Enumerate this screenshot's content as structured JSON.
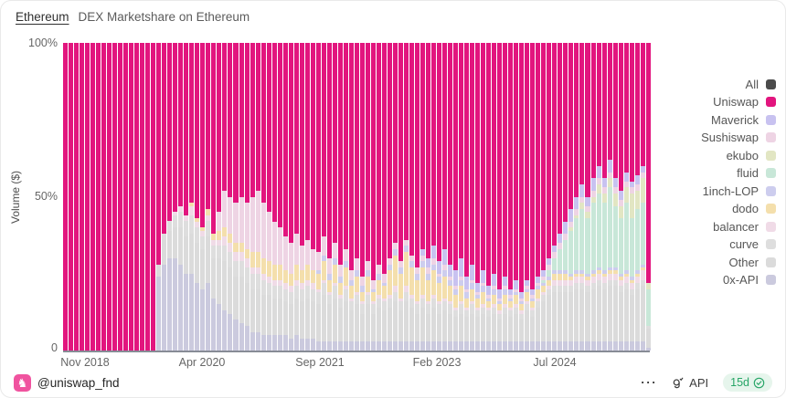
{
  "header": {
    "filter_label": "Ethereum",
    "title": "DEX Marketshare on Ethereum"
  },
  "axes": {
    "y_title": "Volume ($)",
    "y_ticks": [
      "100%",
      "50%",
      "0"
    ],
    "x_ticks": [
      "Nov 2018",
      "Apr 2020",
      "Sep 2021",
      "Feb 2023",
      "Jul 2024"
    ]
  },
  "legend": {
    "items": [
      {
        "label": "All",
        "color": "#4b4b4b"
      },
      {
        "label": "Uniswap",
        "color": "#E2157E"
      },
      {
        "label": "Maverick",
        "color": "#c8c2f0"
      },
      {
        "label": "Sushiswap",
        "color": "#eed4e4"
      },
      {
        "label": "ekubo",
        "color": "#e2e6c3"
      },
      {
        "label": "fluid",
        "color": "#c8e7d8"
      },
      {
        "label": "1inch-LOP",
        "color": "#cdcdee"
      },
      {
        "label": "dodo",
        "color": "#f4dfac"
      },
      {
        "label": "balancer",
        "color": "#f0dbe7"
      },
      {
        "label": "curve",
        "color": "#dedede"
      },
      {
        "label": "Other",
        "color": "#dbdbdb"
      },
      {
        "label": "0x-API",
        "color": "#cbcade"
      }
    ]
  },
  "footer": {
    "author": "@uniswap_fnd",
    "author_icon_glyph": "♞",
    "more_glyph": "⋯",
    "api_label": "API",
    "freshness": "15d"
  },
  "chart_data": {
    "type": "bar",
    "stacked": true,
    "title": "DEX Marketshare on Ethereum",
    "ylabel": "Volume ($)",
    "ylim": [
      0,
      100
    ],
    "y_tick_labels": [
      "0",
      "50%",
      "100%"
    ],
    "x_tick_labels": [
      "Nov 2018",
      "Apr 2020",
      "Sep 2021",
      "Feb 2023",
      "Jul 2024"
    ],
    "legend_position": "right",
    "grid": false,
    "series_names_top_to_bottom": [
      "Uniswap",
      "Maverick",
      "Sushiswap",
      "ekubo",
      "fluid",
      "1inch-LOP",
      "dodo",
      "balancer",
      "curve",
      "Other",
      "0x-API"
    ],
    "series_colors": {
      "Uniswap": "#E2157E",
      "Maverick": "#c8c2f0",
      "Sushiswap": "#eed4e4",
      "ekubo": "#e2e6c3",
      "fluid": "#c8e7d8",
      "1inch-LOP": "#cdcdee",
      "dodo": "#f4dfac",
      "balancer": "#f0dbe7",
      "curve": "#dedede",
      "Other": "#dbdbdb",
      "0x-API": "#cbcade"
    },
    "bars_percent": [
      [
        100,
        0,
        0,
        0,
        0,
        0,
        0,
        0,
        0,
        0,
        0
      ],
      [
        100,
        0,
        0,
        0,
        0,
        0,
        0,
        0,
        0,
        0,
        0
      ],
      [
        100,
        0,
        0,
        0,
        0,
        0,
        0,
        0,
        0,
        0,
        0
      ],
      [
        100,
        0,
        0,
        0,
        0,
        0,
        0,
        0,
        0,
        0,
        0
      ],
      [
        100,
        0,
        0,
        0,
        0,
        0,
        0,
        0,
        0,
        0,
        0
      ],
      [
        100,
        0,
        0,
        0,
        0,
        0,
        0,
        0,
        0,
        0,
        0
      ],
      [
        100,
        0,
        0,
        0,
        0,
        0,
        0,
        0,
        0,
        0,
        0
      ],
      [
        100,
        0,
        0,
        0,
        0,
        0,
        0,
        0,
        0,
        0,
        0
      ],
      [
        100,
        0,
        0,
        0,
        0,
        0,
        0,
        0,
        0,
        0,
        0
      ],
      [
        100,
        0,
        0,
        0,
        0,
        0,
        0,
        0,
        0,
        0,
        0
      ],
      [
        100,
        0,
        0,
        0,
        0,
        0,
        0,
        0,
        0,
        0,
        0
      ],
      [
        100,
        0,
        0,
        0,
        0,
        0,
        0,
        0,
        0,
        0,
        0
      ],
      [
        100,
        0,
        0,
        0,
        0,
        0,
        0,
        0,
        0,
        0,
        0
      ],
      [
        100,
        0,
        0,
        0,
        0,
        0,
        0,
        0,
        0,
        0,
        0
      ],
      [
        100,
        0,
        0,
        0,
        0,
        0,
        0,
        0,
        0,
        0,
        0
      ],
      [
        100,
        0,
        0,
        0,
        0,
        0,
        0,
        0,
        0,
        0,
        0
      ],
      [
        100,
        0,
        0,
        0,
        0,
        0,
        0,
        0,
        0,
        0,
        0
      ],
      [
        72,
        0,
        0,
        0,
        0,
        0,
        0,
        0,
        0,
        4,
        24
      ],
      [
        62,
        0,
        0,
        0,
        0,
        0,
        0,
        0,
        2,
        8,
        28
      ],
      [
        58,
        0,
        0,
        0,
        0,
        0,
        0,
        0,
        3,
        9,
        30
      ],
      [
        55,
        0,
        0,
        0,
        0,
        0,
        0,
        1,
        4,
        10,
        30
      ],
      [
        53,
        0,
        0,
        0,
        0,
        0,
        0,
        2,
        5,
        12,
        28
      ],
      [
        56,
        0,
        0,
        0,
        0,
        0,
        0,
        2,
        5,
        12,
        25
      ],
      [
        52,
        0,
        0,
        0,
        0,
        0,
        1,
        3,
        6,
        13,
        25
      ],
      [
        57,
        0,
        0,
        0,
        0,
        0,
        1,
        2,
        5,
        13,
        22
      ],
      [
        60,
        0,
        0,
        0,
        0,
        0,
        1,
        2,
        4,
        13,
        20
      ],
      [
        54,
        0,
        0,
        0,
        0,
        0,
        2,
        2,
        5,
        15,
        22
      ],
      [
        62,
        0,
        0,
        0,
        0,
        0,
        2,
        2,
        4,
        13,
        17
      ],
      [
        55,
        0,
        6,
        0,
        0,
        0,
        3,
        2,
        4,
        15,
        15
      ],
      [
        48,
        0,
        12,
        0,
        0,
        0,
        3,
        3,
        5,
        16,
        13
      ],
      [
        50,
        0,
        12,
        0,
        0,
        0,
        3,
        3,
        5,
        15,
        12
      ],
      [
        52,
        0,
        13,
        0,
        0,
        0,
        3,
        3,
        5,
        14,
        10
      ],
      [
        50,
        0,
        15,
        0,
        0,
        0,
        3,
        3,
        5,
        15,
        9
      ],
      [
        52,
        0,
        15,
        0,
        0,
        0,
        3,
        3,
        5,
        14,
        8
      ],
      [
        50,
        0,
        18,
        0,
        0,
        0,
        5,
        2,
        5,
        14,
        6
      ],
      [
        48,
        0,
        20,
        0,
        0,
        0,
        5,
        2,
        5,
        14,
        6
      ],
      [
        52,
        0,
        18,
        0,
        0,
        0,
        5,
        2,
        5,
        13,
        5
      ],
      [
        55,
        0,
        16,
        0,
        0,
        0,
        5,
        2,
        4,
        13,
        5
      ],
      [
        58,
        0,
        14,
        0,
        0,
        0,
        5,
        2,
        4,
        12,
        5
      ],
      [
        60,
        0,
        12,
        0,
        0,
        0,
        5,
        2,
        4,
        12,
        5
      ],
      [
        63,
        0,
        11,
        0,
        0,
        0,
        4,
        2,
        4,
        11,
        5
      ],
      [
        65,
        0,
        10,
        0,
        0,
        0,
        4,
        2,
        4,
        11,
        4
      ],
      [
        62,
        0,
        10,
        0,
        0,
        0,
        5,
        2,
        4,
        12,
        5
      ],
      [
        66,
        0,
        8,
        0,
        0,
        0,
        4,
        2,
        4,
        12,
        4
      ],
      [
        64,
        0,
        8,
        0,
        0,
        0,
        5,
        2,
        4,
        13,
        4
      ],
      [
        67,
        0,
        7,
        0,
        0,
        0,
        4,
        2,
        4,
        12,
        4
      ],
      [
        68,
        0,
        6,
        0,
        0,
        1,
        5,
        1,
        4,
        12,
        3
      ],
      [
        63,
        0,
        6,
        0,
        0,
        2,
        6,
        1,
        4,
        15,
        3
      ],
      [
        70,
        0,
        5,
        0,
        0,
        2,
        4,
        1,
        3,
        12,
        3
      ],
      [
        65,
        0,
        5,
        0,
        0,
        2,
        6,
        1,
        4,
        14,
        3
      ],
      [
        72,
        0,
        4,
        0,
        0,
        2,
        4,
        1,
        3,
        11,
        3
      ],
      [
        67,
        0,
        4,
        0,
        0,
        2,
        6,
        1,
        4,
        13,
        3
      ],
      [
        74,
        0,
        3,
        0,
        0,
        2,
        4,
        1,
        3,
        10,
        3
      ],
      [
        70,
        0,
        4,
        0,
        0,
        2,
        5,
        1,
        3,
        12,
        3
      ],
      [
        76,
        0,
        3,
        0,
        0,
        2,
        3,
        1,
        3,
        9,
        3
      ],
      [
        71,
        0,
        3,
        0,
        0,
        2,
        5,
        1,
        3,
        12,
        3
      ],
      [
        77,
        0,
        3,
        0,
        0,
        1,
        3,
        1,
        3,
        9,
        3
      ],
      [
        72,
        0,
        3,
        0,
        0,
        2,
        5,
        1,
        3,
        11,
        3
      ],
      [
        75,
        0,
        3,
        0,
        0,
        1,
        4,
        1,
        3,
        10,
        3
      ],
      [
        70,
        0,
        2,
        0,
        0,
        2,
        8,
        1,
        3,
        11,
        3
      ],
      [
        65,
        0,
        2,
        0,
        0,
        2,
        10,
        2,
        3,
        13,
        3
      ],
      [
        71,
        0,
        2,
        0,
        0,
        2,
        8,
        1,
        3,
        10,
        3
      ],
      [
        64,
        0,
        2,
        0,
        0,
        2,
        11,
        2,
        3,
        13,
        3
      ],
      [
        69,
        0,
        2,
        0,
        0,
        2,
        9,
        1,
        3,
        11,
        3
      ],
      [
        73,
        0,
        2,
        0,
        0,
        2,
        7,
        1,
        3,
        9,
        3
      ],
      [
        67,
        2,
        2,
        0,
        0,
        2,
        9,
        1,
        3,
        11,
        3
      ],
      [
        70,
        3,
        2,
        0,
        0,
        2,
        7,
        1,
        3,
        9,
        3
      ],
      [
        66,
        4,
        2,
        0,
        0,
        2,
        8,
        1,
        3,
        11,
        3
      ],
      [
        71,
        4,
        1,
        0,
        0,
        2,
        6,
        1,
        3,
        9,
        3
      ],
      [
        67,
        5,
        2,
        0,
        0,
        2,
        7,
        1,
        3,
        10,
        3
      ],
      [
        72,
        4,
        1,
        0,
        0,
        2,
        5,
        1,
        3,
        9,
        3
      ],
      [
        74,
        5,
        1,
        0,
        0,
        2,
        4,
        1,
        2,
        8,
        3
      ],
      [
        70,
        6,
        1,
        0,
        0,
        2,
        5,
        1,
        3,
        9,
        3
      ],
      [
        76,
        4,
        1,
        0,
        0,
        2,
        3,
        1,
        2,
        8,
        3
      ],
      [
        72,
        5,
        1,
        0,
        0,
        2,
        4,
        1,
        3,
        9,
        3
      ],
      [
        78,
        3,
        1,
        0,
        0,
        1,
        3,
        1,
        2,
        8,
        3
      ],
      [
        74,
        4,
        1,
        0,
        0,
        2,
        4,
        1,
        2,
        9,
        3
      ],
      [
        79,
        3,
        1,
        0,
        0,
        1,
        2,
        1,
        2,
        8,
        3
      ],
      [
        75,
        4,
        1,
        0,
        0,
        2,
        3,
        1,
        2,
        9,
        3
      ],
      [
        80,
        3,
        1,
        0,
        0,
        1,
        2,
        1,
        2,
        7,
        3
      ],
      [
        76,
        3,
        1,
        0,
        0,
        2,
        3,
        1,
        2,
        9,
        3
      ],
      [
        80,
        2,
        1,
        0,
        0,
        1,
        2,
        1,
        2,
        8,
        3
      ],
      [
        77,
        3,
        1,
        0,
        0,
        1,
        3,
        1,
        2,
        9,
        3
      ],
      [
        81,
        2,
        1,
        0,
        0,
        1,
        2,
        1,
        2,
        7,
        3
      ],
      [
        77,
        2,
        1,
        0,
        0,
        1,
        3,
        1,
        2,
        10,
        3
      ],
      [
        80,
        2,
        1,
        0,
        0,
        1,
        2,
        1,
        2,
        8,
        3
      ],
      [
        76,
        2,
        1,
        0,
        0,
        1,
        3,
        1,
        2,
        11,
        3
      ],
      [
        74,
        2,
        1,
        0,
        1,
        1,
        2,
        1,
        2,
        13,
        3
      ],
      [
        70,
        2,
        2,
        0,
        2,
        1,
        2,
        1,
        2,
        15,
        3
      ],
      [
        66,
        2,
        2,
        0,
        4,
        1,
        2,
        2,
        2,
        16,
        3
      ],
      [
        62,
        3,
        2,
        0,
        7,
        1,
        2,
        2,
        2,
        16,
        3
      ],
      [
        58,
        4,
        2,
        0,
        10,
        1,
        2,
        2,
        2,
        16,
        3
      ],
      [
        54,
        4,
        2,
        1,
        14,
        1,
        1,
        2,
        2,
        16,
        3
      ],
      [
        50,
        4,
        2,
        1,
        17,
        1,
        1,
        2,
        2,
        17,
        3
      ],
      [
        46,
        4,
        2,
        2,
        20,
        1,
        1,
        2,
        2,
        17,
        3
      ],
      [
        50,
        3,
        2,
        2,
        18,
        1,
        1,
        2,
        2,
        16,
        3
      ],
      [
        44,
        4,
        2,
        2,
        22,
        1,
        1,
        2,
        2,
        17,
        3
      ],
      [
        40,
        4,
        2,
        3,
        24,
        1,
        1,
        2,
        2,
        18,
        3
      ],
      [
        44,
        3,
        2,
        3,
        22,
        1,
        1,
        2,
        2,
        17,
        3
      ],
      [
        38,
        4,
        2,
        3,
        26,
        1,
        1,
        2,
        2,
        18,
        3
      ],
      [
        44,
        3,
        2,
        4,
        20,
        1,
        1,
        2,
        2,
        18,
        3
      ],
      [
        48,
        3,
        2,
        4,
        18,
        1,
        1,
        2,
        2,
        16,
        3
      ],
      [
        42,
        3,
        2,
        5,
        22,
        1,
        1,
        2,
        2,
        17,
        3
      ],
      [
        45,
        2,
        2,
        8,
        19,
        1,
        1,
        2,
        2,
        15,
        3
      ],
      [
        43,
        3,
        2,
        6,
        20,
        1,
        1,
        2,
        2,
        17,
        3
      ],
      [
        40,
        2,
        2,
        8,
        20,
        1,
        1,
        3,
        2,
        18,
        3
      ],
      [
        78,
        0,
        0,
        2,
        12,
        0,
        0,
        0,
        1,
        6,
        1
      ]
    ]
  }
}
